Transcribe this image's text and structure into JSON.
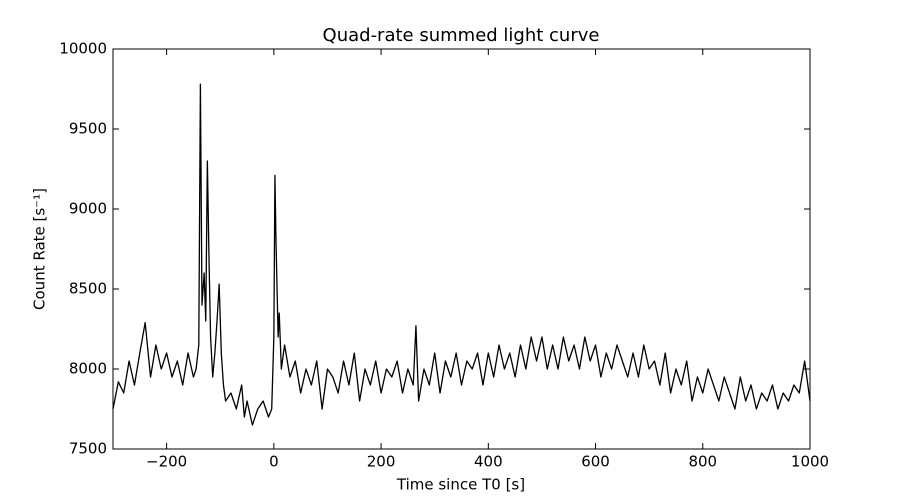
{
  "chart_data": {
    "type": "line",
    "title": "Quad-rate summed light curve",
    "xlabel": "Time since T0 [s]",
    "ylabel": "Count Rate [s⁻¹]",
    "color": "#000000",
    "x": [
      -300,
      -290,
      -280,
      -270,
      -260,
      -250,
      -240,
      -230,
      -220,
      -210,
      -200,
      -190,
      -180,
      -170,
      -160,
      -150,
      -145,
      -140,
      -137,
      -134,
      -130,
      -127,
      -124,
      -121,
      -118,
      -114,
      -110,
      -106,
      -102,
      -98,
      -94,
      -90,
      -80,
      -70,
      -60,
      -55,
      -50,
      -40,
      -30,
      -20,
      -10,
      -4,
      0,
      2,
      4,
      6,
      8,
      10,
      14,
      20,
      30,
      40,
      50,
      60,
      70,
      80,
      90,
      100,
      110,
      120,
      130,
      140,
      150,
      160,
      170,
      180,
      190,
      200,
      210,
      220,
      230,
      240,
      250,
      260,
      265,
      270,
      280,
      290,
      300,
      310,
      320,
      330,
      340,
      350,
      360,
      370,
      380,
      390,
      400,
      410,
      420,
      430,
      440,
      450,
      460,
      470,
      480,
      490,
      500,
      510,
      520,
      530,
      540,
      550,
      560,
      570,
      580,
      590,
      600,
      610,
      620,
      630,
      640,
      650,
      660,
      670,
      680,
      690,
      700,
      710,
      720,
      730,
      740,
      750,
      760,
      770,
      780,
      790,
      800,
      810,
      820,
      830,
      840,
      850,
      860,
      870,
      880,
      890,
      900,
      910,
      920,
      930,
      940,
      950,
      960,
      970,
      980,
      990,
      1000
    ],
    "values": [
      7750,
      7920,
      7850,
      8050,
      7900,
      8100,
      8290,
      7950,
      8150,
      8000,
      8100,
      7950,
      8050,
      7900,
      8100,
      7950,
      8000,
      8150,
      9780,
      8400,
      8600,
      8300,
      9300,
      8700,
      8200,
      7950,
      8100,
      8300,
      8530,
      8100,
      7900,
      7800,
      7850,
      7750,
      7900,
      7700,
      7800,
      7650,
      7750,
      7800,
      7700,
      7750,
      8200,
      9210,
      8800,
      8500,
      8200,
      8350,
      8000,
      8150,
      7950,
      8050,
      7850,
      8000,
      7900,
      8050,
      7750,
      8000,
      7950,
      7850,
      8050,
      7900,
      8100,
      7800,
      8000,
      7900,
      8050,
      7850,
      8000,
      7950,
      8050,
      7850,
      8000,
      7900,
      8270,
      7800,
      8000,
      7900,
      8100,
      7850,
      8050,
      7950,
      8100,
      7900,
      8050,
      8000,
      8100,
      7900,
      8100,
      7950,
      8150,
      8000,
      8100,
      7950,
      8150,
      8000,
      8200,
      8050,
      8200,
      8000,
      8150,
      8000,
      8200,
      8050,
      8150,
      8000,
      8200,
      8050,
      8150,
      7950,
      8100,
      8000,
      8150,
      8050,
      7950,
      8100,
      7950,
      8150,
      8000,
      8050,
      7900,
      8100,
      7850,
      8000,
      7900,
      8050,
      7800,
      7950,
      7850,
      8000,
      7900,
      7800,
      7950,
      7850,
      7750,
      7950,
      7800,
      7900,
      7750,
      7850,
      7800,
      7900,
      7750,
      7850,
      7800,
      7900,
      7850,
      8050,
      7800
    ],
    "xlim": [
      -300,
      1000
    ],
    "xticks": [
      {
        "value": -200,
        "label": "−200"
      },
      0,
      200,
      400,
      600,
      800,
      1000
    ],
    "ylim": [
      7500,
      10000
    ],
    "yticks": [
      7500,
      8000,
      8500,
      9000,
      9500,
      10000
    ],
    "grid": false
  }
}
